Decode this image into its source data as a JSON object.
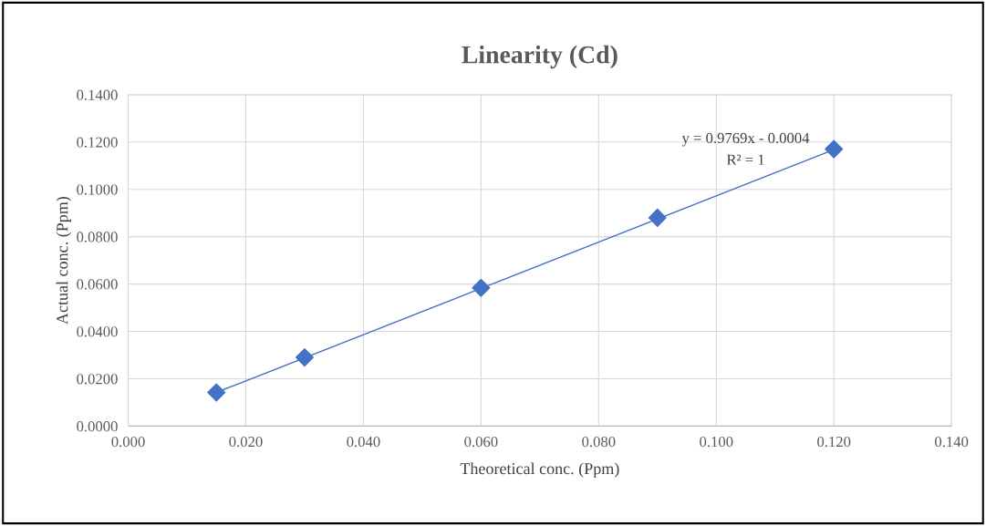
{
  "chart_data": {
    "type": "scatter",
    "title": "Linearity (Cd)",
    "xlabel": "Theoretical conc. (Ppm)",
    "ylabel": "Actual conc. (Ppm)",
    "series": [
      {
        "marker": "diamond",
        "color": "#4472c4",
        "x": [
          0.015,
          0.03,
          0.06,
          0.09,
          0.12
        ],
        "values": [
          0.0142,
          0.029,
          0.0584,
          0.088,
          0.117
        ]
      },
      {
        "type": "line",
        "marker": "none",
        "color": "#4472c4",
        "x": [
          0.015,
          0.12
        ],
        "values": [
          0.0142,
          0.1168
        ]
      }
    ],
    "annotations": [
      "y = 0.9769x - 0.0004",
      "R² = 1"
    ],
    "xlim": [
      0,
      0.14
    ],
    "ylim": [
      0,
      0.14
    ],
    "xticks": [
      {
        "value": 0,
        "label": "0.000"
      },
      {
        "value": 0.02,
        "label": "0.020"
      },
      {
        "value": 0.04,
        "label": "0.040"
      },
      {
        "value": 0.06,
        "label": "0.060"
      },
      {
        "value": 0.08,
        "label": "0.080"
      },
      {
        "value": 0.1,
        "label": "0.100"
      },
      {
        "value": 0.12,
        "label": "0.120"
      },
      {
        "value": 0.14,
        "label": "0.140"
      }
    ],
    "yticks": [
      {
        "value": 0,
        "label": "0.0000"
      },
      {
        "value": 0.02,
        "label": "0.0200"
      },
      {
        "value": 0.04,
        "label": "0.0400"
      },
      {
        "value": 0.06,
        "label": "0.0600"
      },
      {
        "value": 0.08,
        "label": "0.0800"
      },
      {
        "value": 0.1,
        "label": "0.1000"
      },
      {
        "value": 0.12,
        "label": "0.1200"
      },
      {
        "value": 0.14,
        "label": "0.1400"
      }
    ],
    "grid": true,
    "legend": false
  }
}
